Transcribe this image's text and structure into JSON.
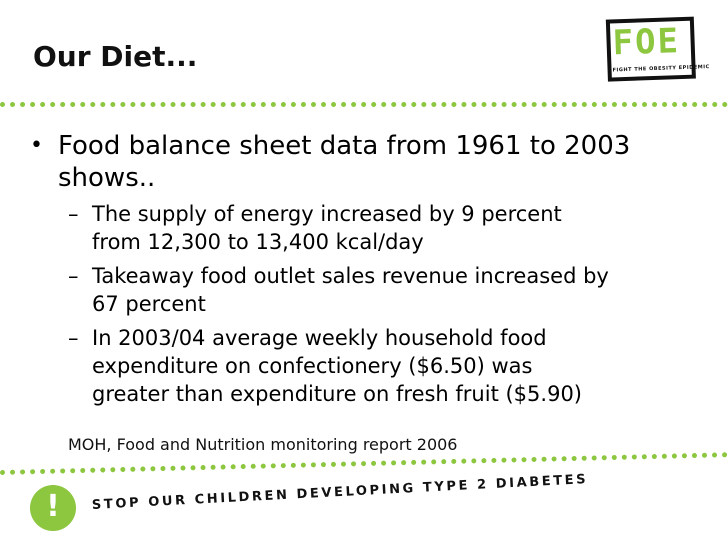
{
  "slide": {
    "title": "Our Diet...",
    "bullet": "Food balance sheet data from 1961 to 2003 shows..",
    "bullet_marker": "•",
    "sub_marker": "–",
    "sub_bullets": [
      {
        "line1": "The supply of energy increased by 9 percent",
        "line2": "from 12,300 to 13,400 kcal/day"
      },
      {
        "line1": "Takeaway food outlet sales revenue increased by",
        "line2": "67 percent"
      },
      {
        "line1": "In 2003/04 average weekly household food",
        "line2": "expenditure on confectionery ($6.50) was",
        "line3": "greater than expenditure on fresh fruit ($5.90)"
      }
    ],
    "source": "MOH, Food and Nutrition monitoring report 2006"
  },
  "logo": {
    "letters": "FOE",
    "tagline": "FIGHT THE OBESITY EPIDEMIC"
  },
  "footer": {
    "badge_glyph": "!",
    "slogan": "STOP OUR CHILDREN DEVELOPING TYPE 2 DIABETES"
  },
  "colors": {
    "accent": "#8dc63f",
    "text": "#111111"
  }
}
